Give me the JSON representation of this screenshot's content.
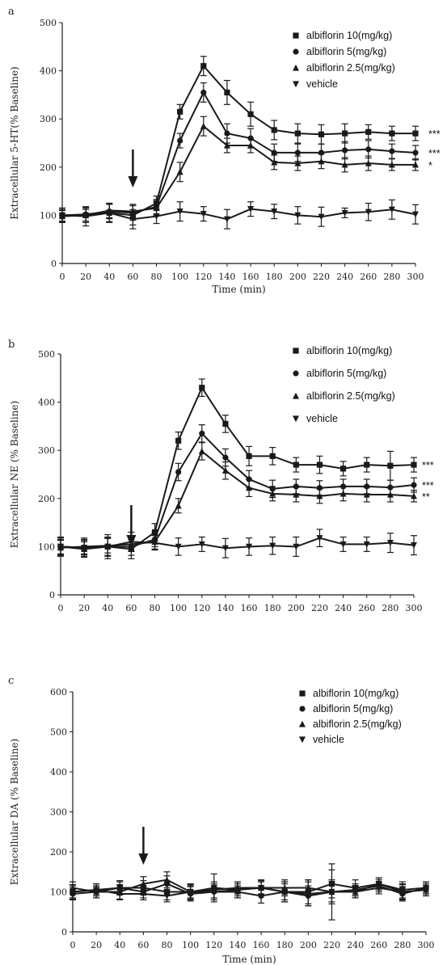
{
  "colors": {
    "ink": "#1a1a1a"
  },
  "chart_data": [
    {
      "panel": "a",
      "type": "line",
      "ylabel": "Extracellular 5-HT(% Baseline)",
      "xlabel": "Time (min)",
      "xlim": [
        0,
        300
      ],
      "ylim": [
        0,
        500
      ],
      "xticks": [
        "0",
        "20",
        "40",
        "60",
        "80",
        "100",
        "120",
        "140",
        "160",
        "180",
        "200",
        "220",
        "240",
        "260",
        "280",
        "300"
      ],
      "yticks": [
        "0",
        "100",
        "200",
        "300",
        "400",
        "500"
      ],
      "x": [
        0,
        20,
        40,
        60,
        80,
        100,
        120,
        140,
        160,
        180,
        200,
        220,
        240,
        260,
        280,
        300
      ],
      "annotation": {
        "type": "arrow",
        "x": 60
      },
      "series": [
        {
          "name": "albiflorin 10(mg/kg)",
          "marker": "square",
          "values": [
            100,
            100,
            105,
            100,
            125,
            315,
            410,
            355,
            310,
            277,
            270,
            268,
            270,
            273,
            270,
            270
          ],
          "errors": [
            15,
            15,
            18,
            20,
            15,
            15,
            20,
            25,
            25,
            20,
            20,
            20,
            20,
            15,
            15,
            15
          ],
          "significance": "***"
        },
        {
          "name": "albiflorin 5(mg/kg)",
          "marker": "circle",
          "values": [
            100,
            102,
            108,
            105,
            118,
            255,
            355,
            270,
            260,
            230,
            230,
            230,
            235,
            237,
            233,
            230
          ],
          "errors": [
            12,
            14,
            15,
            15,
            15,
            15,
            20,
            20,
            20,
            18,
            18,
            18,
            18,
            18,
            15,
            15
          ],
          "significance": "***"
        },
        {
          "name": "albiflorin 2.5(mg/kg)",
          "marker": "triangle-up",
          "values": [
            98,
            100,
            110,
            108,
            115,
            190,
            285,
            245,
            245,
            210,
            208,
            212,
            205,
            208,
            205,
            205
          ],
          "errors": [
            12,
            12,
            15,
            15,
            15,
            20,
            20,
            15,
            15,
            15,
            15,
            15,
            15,
            15,
            12,
            12
          ],
          "significance": "*"
        },
        {
          "name": "vehicle",
          "marker": "triangle-down",
          "values": [
            100,
            98,
            105,
            92,
            98,
            108,
            103,
            92,
            113,
            108,
            100,
            97,
            105,
            107,
            112,
            102
          ],
          "errors": [
            15,
            20,
            20,
            20,
            15,
            20,
            15,
            20,
            15,
            15,
            18,
            20,
            10,
            18,
            20,
            20
          ]
        }
      ]
    },
    {
      "panel": "b",
      "type": "line",
      "ylabel": "Extracellular NE (% Baseline)",
      "xlabel": "",
      "xlim": [
        0,
        300
      ],
      "ylim": [
        0,
        500
      ],
      "xticks": [
        "0",
        "20",
        "40",
        "60",
        "80",
        "100",
        "120",
        "140",
        "160",
        "180",
        "200",
        "220",
        "240",
        "260",
        "280",
        "300"
      ],
      "yticks": [
        "0",
        "100",
        "200",
        "300",
        "400",
        "500"
      ],
      "x": [
        0,
        20,
        40,
        60,
        80,
        100,
        120,
        140,
        160,
        180,
        200,
        220,
        240,
        260,
        280,
        300
      ],
      "annotation": {
        "type": "arrow",
        "x": 60
      },
      "series": [
        {
          "name": "albiflorin 10(mg/kg)",
          "marker": "square",
          "values": [
            100,
            95,
            100,
            95,
            130,
            320,
            430,
            355,
            288,
            288,
            270,
            270,
            262,
            270,
            268,
            270
          ],
          "errors": [
            18,
            15,
            20,
            20,
            18,
            18,
            18,
            18,
            20,
            18,
            15,
            18,
            15,
            15,
            30,
            15
          ],
          "significance": "***"
        },
        {
          "name": "albiflorin 5(mg/kg)",
          "marker": "circle",
          "values": [
            100,
            98,
            100,
            100,
            115,
            255,
            335,
            285,
            240,
            220,
            225,
            222,
            225,
            225,
            223,
            228
          ],
          "errors": [
            15,
            15,
            18,
            18,
            15,
            18,
            18,
            18,
            18,
            18,
            15,
            15,
            15,
            15,
            15,
            15
          ],
          "significance": "***"
        },
        {
          "name": "albiflorin 2.5(mg/kg)",
          "marker": "triangle-up",
          "values": [
            98,
            100,
            102,
            105,
            110,
            185,
            298,
            258,
            222,
            210,
            208,
            205,
            210,
            208,
            208,
            205
          ],
          "errors": [
            15,
            15,
            15,
            15,
            15,
            15,
            18,
            18,
            18,
            15,
            15,
            15,
            15,
            15,
            15,
            12
          ],
          "significance": "**"
        },
        {
          "name": "vehicle",
          "marker": "triangle-down",
          "values": [
            100,
            98,
            100,
            110,
            108,
            100,
            105,
            97,
            100,
            102,
            100,
            118,
            105,
            105,
            108,
            103
          ],
          "errors": [
            20,
            20,
            25,
            20,
            15,
            18,
            15,
            20,
            18,
            18,
            20,
            18,
            15,
            15,
            20,
            20
          ]
        }
      ]
    },
    {
      "panel": "c",
      "type": "line",
      "ylabel": "Extracellular DA (% Baseline)",
      "xlabel": "Time (min)",
      "xlim": [
        0,
        300
      ],
      "ylim": [
        0,
        600
      ],
      "xticks": [
        "0",
        "20",
        "40",
        "60",
        "80",
        "100",
        "120",
        "140",
        "160",
        "180",
        "200",
        "220",
        "240",
        "260",
        "280",
        "300"
      ],
      "yticks": [
        "0",
        "100",
        "200",
        "300",
        "400",
        "500",
        "600"
      ],
      "x": [
        0,
        20,
        40,
        60,
        80,
        100,
        120,
        140,
        160,
        180,
        200,
        220,
        240,
        260,
        280,
        300
      ],
      "annotation": {
        "type": "arrow",
        "x": 60
      },
      "series": [
        {
          "name": "albiflorin 10(mg/kg)",
          "marker": "square",
          "values": [
            100,
            105,
            110,
            110,
            100,
            100,
            110,
            105,
            110,
            100,
            100,
            120,
            110,
            120,
            105,
            110
          ],
          "errors": [
            18,
            15,
            15,
            18,
            20,
            20,
            35,
            20,
            20,
            25,
            30,
            35,
            20,
            15,
            20,
            15
          ]
        },
        {
          "name": "albiflorin 5(mg/kg)",
          "marker": "circle",
          "values": [
            95,
            100,
            110,
            100,
            120,
            95,
            100,
            100,
            90,
            100,
            90,
            100,
            105,
            115,
            95,
            110
          ],
          "errors": [
            15,
            15,
            18,
            15,
            20,
            18,
            20,
            15,
            18,
            20,
            25,
            30,
            15,
            15,
            18,
            15
          ]
        },
        {
          "name": "albiflorin 2.5(mg/kg)",
          "marker": "triangle-up",
          "values": [
            110,
            100,
            100,
            120,
            130,
            100,
            105,
            110,
            110,
            110,
            110,
            100,
            100,
            120,
            100,
            105
          ],
          "errors": [
            15,
            15,
            18,
            18,
            20,
            18,
            20,
            15,
            18,
            20,
            20,
            25,
            15,
            15,
            18,
            15
          ]
        },
        {
          "name": "vehicle",
          "marker": "triangle-down",
          "values": [
            100,
            105,
            95,
            95,
            90,
            100,
            100,
            105,
            110,
            100,
            95,
            100,
            100,
            110,
            100,
            105
          ],
          "errors": [
            15,
            15,
            15,
            15,
            15,
            15,
            20,
            15,
            15,
            25,
            30,
            70,
            15,
            15,
            20,
            15
          ]
        }
      ]
    }
  ]
}
